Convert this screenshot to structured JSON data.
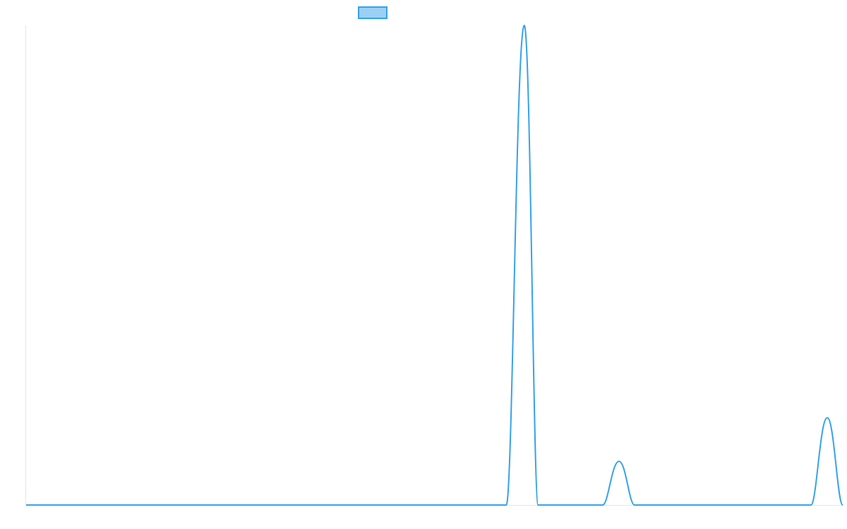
{
  "chart_data": {
    "type": "line",
    "title": "",
    "xlabel": "",
    "ylabel": "",
    "grid": false,
    "legend": "top-center",
    "xlim": [
      0,
      100
    ],
    "ylim": [
      0,
      100
    ],
    "series": [
      {
        "color": "#36a2eb",
        "fill": "#9ad0f5",
        "points": [
          [
            0,
            0
          ],
          [
            58.8,
            0
          ],
          [
            61.0,
            100
          ],
          [
            62.7,
            0
          ],
          [
            70.6,
            0
          ],
          [
            72.6,
            9.1
          ],
          [
            74.5,
            0
          ],
          [
            96.1,
            0
          ],
          [
            98.1,
            18.2
          ],
          [
            100,
            0
          ]
        ]
      }
    ]
  }
}
